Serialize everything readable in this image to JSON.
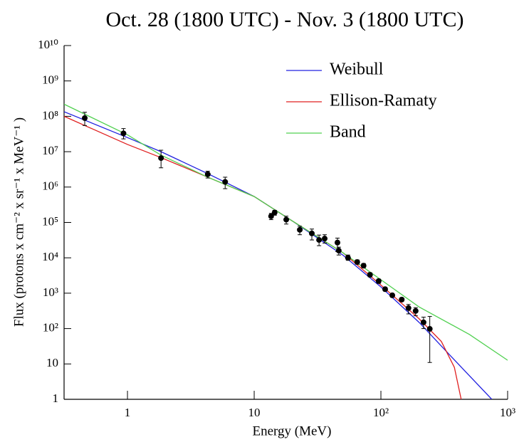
{
  "chart_data": {
    "type": "line",
    "title": "Oct. 28 (1800 UTC) - Nov. 3 (1800 UTC)",
    "x_label": "Energy (MeV)",
    "y_label": "Flux (protons x cm⁻² x sr⁻¹ x MeV⁻¹ )",
    "log_x": true,
    "log_y": true,
    "legend": "upper right",
    "xlim": [
      0.316,
      1000
    ],
    "ylim": [
      1,
      10000000000
    ],
    "xticks": [
      1,
      10,
      {
        "value": 100,
        "label": "10²"
      },
      {
        "value": 1000,
        "label": "10³"
      }
    ],
    "yticks": [
      1,
      10,
      {
        "value": 100,
        "label": "10²"
      },
      {
        "value": 1000,
        "label": "10³"
      },
      {
        "value": 10000,
        "label": "10⁴"
      },
      {
        "value": 100000,
        "label": "10⁵"
      },
      {
        "value": 1000000,
        "label": "10⁶"
      },
      {
        "value": 10000000,
        "label": "10⁷"
      },
      {
        "value": 100000000,
        "label": "10⁸"
      },
      {
        "value": 1000000000,
        "label": "10⁹"
      },
      {
        "value": 10000000000,
        "label": "10¹⁰"
      }
    ],
    "series": [
      {
        "name": "Weibull",
        "color": "#2020e0",
        "x": [
          0.316,
          1,
          1.84,
          4.3,
          10,
          20,
          50,
          100,
          200,
          400,
          750
        ],
        "values": [
          135000000,
          25000000,
          10000000,
          2400000,
          540000,
          110000,
          12000,
          1500,
          150,
          10.7,
          1
        ]
      },
      {
        "name": "Ellison-Ramaty",
        "color": "#e02020",
        "x": [
          0.316,
          1,
          1.84,
          4.3,
          10,
          20,
          50,
          100,
          200,
          300,
          380,
          430
        ],
        "values": [
          100000000,
          16000000,
          6800000,
          1900000,
          540000,
          110000,
          14000,
          1700,
          190,
          43,
          8,
          1
        ]
      },
      {
        "name": "Band",
        "color": "#50d050",
        "x": [
          0.316,
          1,
          1.84,
          4.3,
          10,
          20,
          50,
          100,
          200,
          500,
          1000
        ],
        "values": [
          220000000,
          30000000,
          8000000,
          1900000,
          540000,
          110000,
          14000,
          2400,
          410,
          68,
          12.7
        ]
      }
    ],
    "points": {
      "color": "#000000",
      "x": [
        0.46,
        0.93,
        1.84,
        4.3,
        5.9,
        13.6,
        14.5,
        17.9,
        22.9,
        28.5,
        32.5,
        36,
        45.4,
        46.5,
        55,
        65,
        73,
        82,
        96,
        108,
        123,
        146,
        165,
        188,
        217,
        243
      ],
      "values": [
        89000000,
        33000000,
        6600000,
        2300000,
        1400000,
        150000,
        190000,
        120000,
        62000,
        49000,
        32000,
        35000,
        27000,
        16000,
        10000,
        7600,
        6000,
        3300,
        2200,
        1300,
        870,
        660,
        380,
        315,
        150,
        98
      ],
      "y_low": [
        55000000,
        23000000,
        3500000,
        1800000,
        900000,
        120000,
        160000,
        90000,
        45000,
        32000,
        22000,
        26000,
        15000,
        12000,
        8500,
        6600,
        5200,
        2900,
        1900,
        1150,
        770,
        580,
        260,
        230,
        100,
        11
      ],
      "y_high": [
        130000000,
        45000000,
        11000000,
        2800000,
        1900000,
        180000,
        220000,
        150000,
        78000,
        65000,
        44000,
        45000,
        36000,
        20000,
        12000,
        8700,
        6900,
        3800,
        2500,
        1450,
        980,
        740,
        480,
        390,
        210,
        220
      ]
    }
  }
}
